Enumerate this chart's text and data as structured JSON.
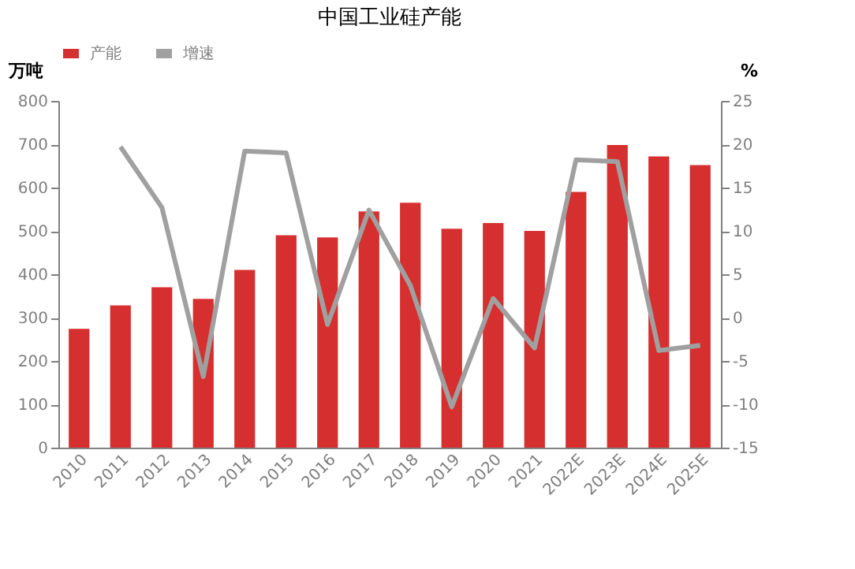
{
  "chart_data": {
    "type": "bar",
    "title": "中国工业硅产能",
    "ylabel": "万吨",
    "y2label": "%",
    "categories": [
      "2010",
      "2011",
      "2012",
      "2013",
      "2014",
      "2015",
      "2016",
      "2017",
      "2018",
      "2019",
      "2020",
      "2021",
      "2022E",
      "2023E",
      "2024E",
      "2025E"
    ],
    "series": [
      {
        "name": "产能",
        "type": "bar",
        "color": "#d62f2f",
        "values": [
          274,
          328,
          370,
          343,
          410,
          490,
          485,
          545,
          565,
          505,
          518,
          500,
          590,
          698,
          672,
          652
        ]
      },
      {
        "name": "增速",
        "type": "line",
        "axis": "y2",
        "color": "#a0a0a0",
        "values": [
          null,
          19.7,
          12.7,
          -6.8,
          19.2,
          19.0,
          -0.8,
          12.4,
          3.7,
          -10.3,
          2.2,
          -3.5,
          18.2,
          18.0,
          -3.8,
          -3.2
        ]
      }
    ],
    "ylim": [
      0,
      800
    ],
    "yticks": [
      0,
      100,
      200,
      300,
      400,
      500,
      600,
      700,
      800
    ],
    "y2lim": [
      -15,
      25
    ],
    "y2ticks": [
      -15,
      -10,
      -5,
      0,
      5,
      10,
      15,
      20,
      25
    ],
    "grid": false,
    "legend": "top",
    "marker": "none",
    "line_style": "solid"
  }
}
